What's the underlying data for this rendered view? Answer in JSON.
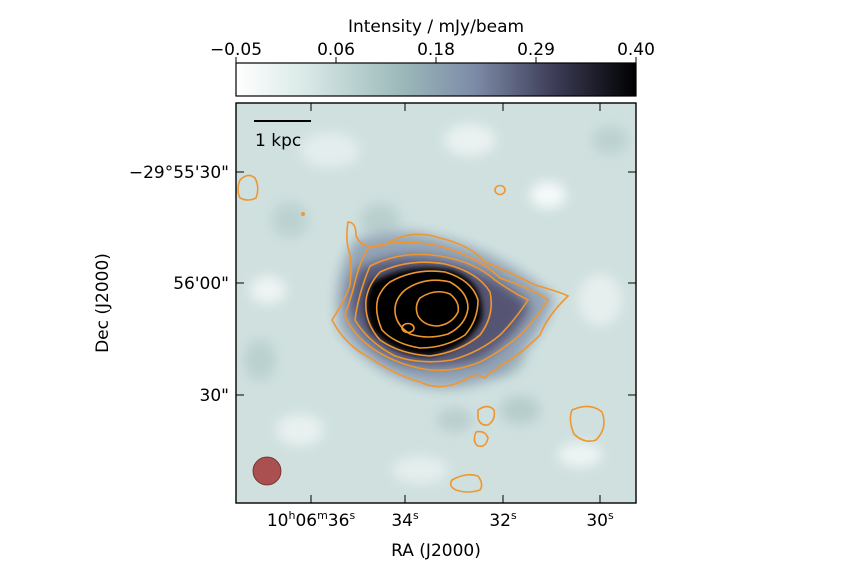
{
  "colorbar": {
    "title": "Intensity / mJy/beam",
    "ticks": [
      "−0.05",
      "0.06",
      "0.18",
      "0.29",
      "0.40"
    ],
    "range": [
      -0.05,
      0.4
    ],
    "colormap": [
      "#ffffff",
      "#d6e6e4",
      "#a7c4c3",
      "#7b8ea5",
      "#3a3a5a",
      "#000000"
    ]
  },
  "image": {
    "x_label": "RA (J2000)",
    "y_label": "Dec (J2000)",
    "x_ticks": [
      {
        "h": "10",
        "h_sup": "h",
        "m": "06",
        "m_sup": "m",
        "s": "36",
        "s_sup": "s"
      },
      {
        "s": "34",
        "s_sup": "s"
      },
      {
        "s": "32",
        "s_sup": "s"
      },
      {
        "s": "30",
        "s_sup": "s"
      }
    ],
    "y_ticks": [
      "−29°55'30\"",
      "56'00\"",
      "30\""
    ],
    "scalebar_label": "1 kpc",
    "contour_color": "#f0962e",
    "beam_color": "#a84848",
    "map_bg": "#cfe0df"
  }
}
